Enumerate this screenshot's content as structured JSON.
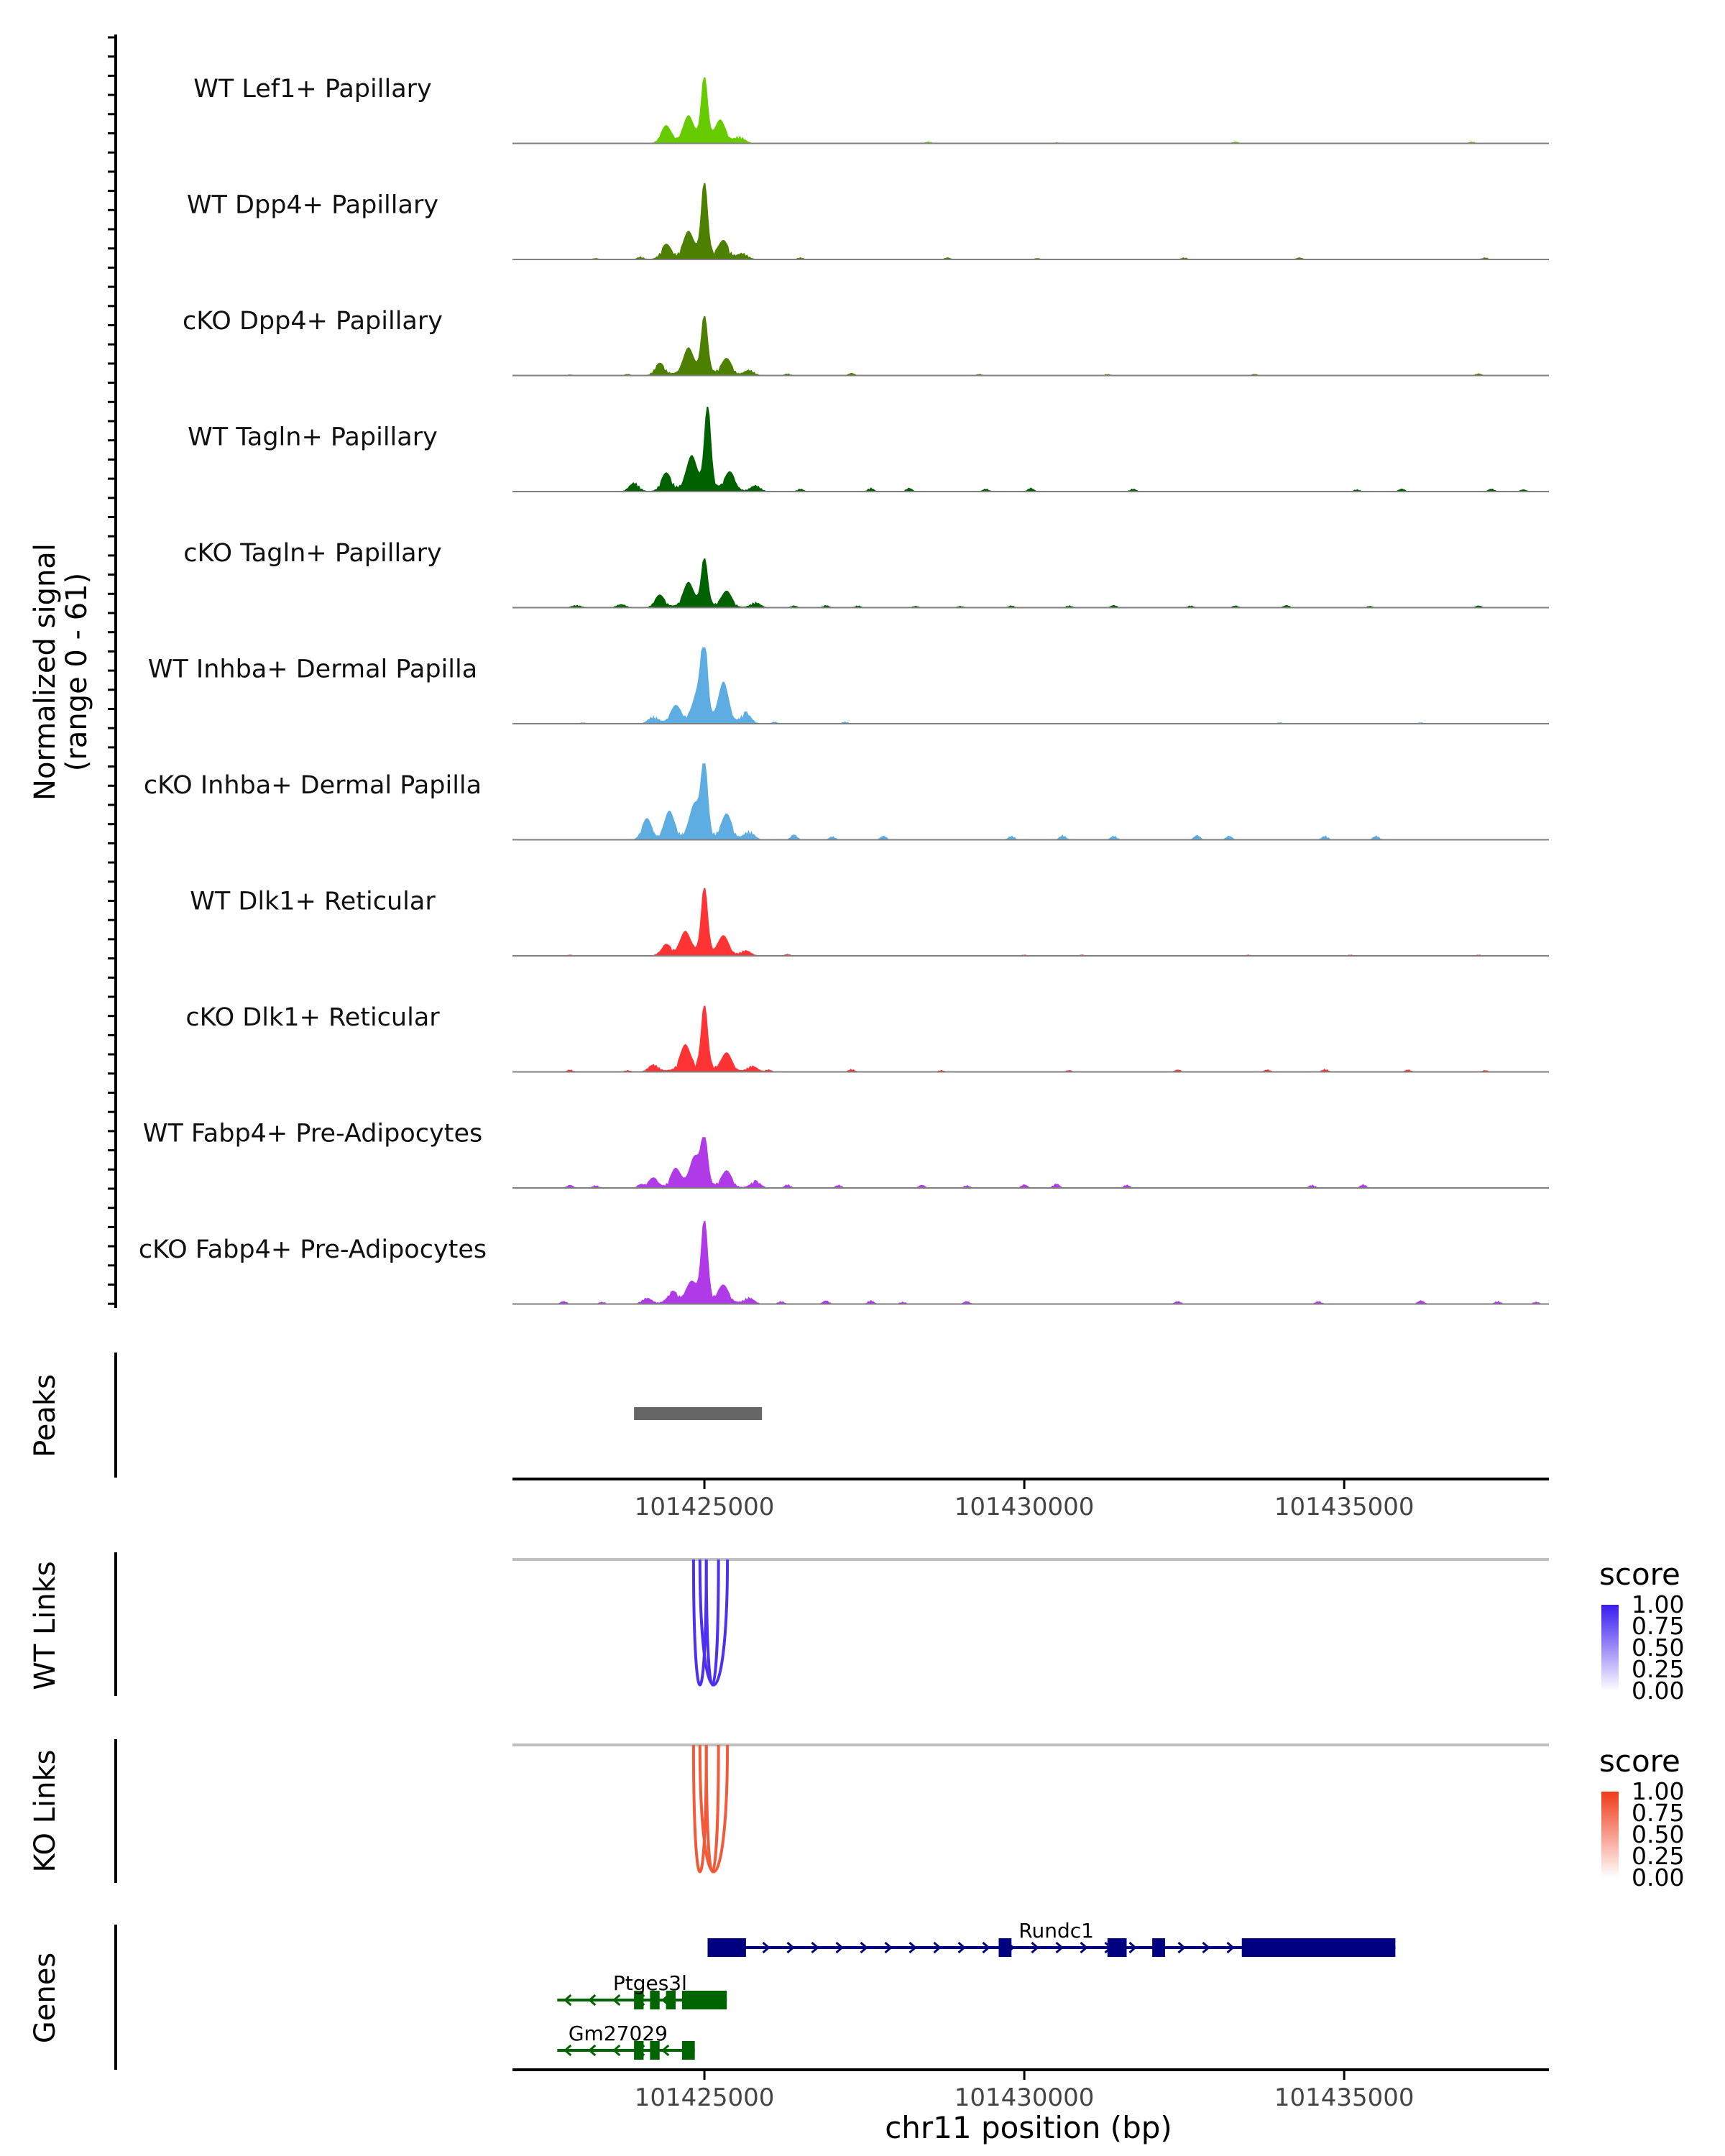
{
  "chart_data": {
    "type": "area",
    "chromosome": "chr11",
    "x_range": [
      101422000,
      101438200
    ],
    "y_axis": {
      "title_line1": "Normalized signal",
      "title_line2": "(range 0 - 61)",
      "range": [
        0,
        61
      ]
    },
    "x_axis": {
      "label": "chr11 position (bp)",
      "ticks": [
        101425000,
        101430000,
        101435000
      ],
      "tick_labels": [
        "101425000",
        "101430000",
        "101435000"
      ]
    },
    "coverage_tracks": [
      {
        "name": "WT Lef1+ Papillary",
        "color": "#66CC00",
        "scale": 0.78,
        "peaks": [
          [
            101424400,
            0.25
          ],
          [
            101424750,
            0.35
          ],
          [
            101425000,
            1.0
          ],
          [
            101425250,
            0.3
          ],
          [
            101425550,
            0.1
          ]
        ],
        "noise": [
          [
            101428500,
            0.03
          ],
          [
            101430500,
            0.02
          ],
          [
            101433300,
            0.03
          ],
          [
            101437000,
            0.03
          ]
        ]
      },
      {
        "name": "WT Dpp4+ Papillary",
        "color": "#4D8000",
        "scale": 0.9,
        "peaks": [
          [
            101424400,
            0.18
          ],
          [
            101424750,
            0.3
          ],
          [
            101425000,
            1.0
          ],
          [
            101425300,
            0.2
          ],
          [
            101425600,
            0.08
          ]
        ],
        "noise": [
          [
            101423300,
            0.02
          ],
          [
            101424000,
            0.04
          ],
          [
            101426500,
            0.03
          ],
          [
            101428800,
            0.03
          ],
          [
            101430200,
            0.02
          ],
          [
            101432500,
            0.03
          ],
          [
            101434300,
            0.03
          ],
          [
            101437200,
            0.03
          ]
        ]
      },
      {
        "name": "cKO Dpp4+ Papillary",
        "color": "#4D8000",
        "scale": 0.7,
        "peaks": [
          [
            101424300,
            0.2
          ],
          [
            101424750,
            0.4
          ],
          [
            101425000,
            1.0
          ],
          [
            101425350,
            0.25
          ],
          [
            101425700,
            0.1
          ]
        ],
        "noise": [
          [
            101422900,
            0.02
          ],
          [
            101423800,
            0.03
          ],
          [
            101426300,
            0.04
          ],
          [
            101427300,
            0.05
          ],
          [
            101429300,
            0.03
          ],
          [
            101431300,
            0.03
          ],
          [
            101433600,
            0.03
          ],
          [
            101437100,
            0.04
          ]
        ]
      },
      {
        "name": "WT Tagln+ Papillary",
        "color": "#006100",
        "scale": 1.0,
        "peaks": [
          [
            101423900,
            0.12
          ],
          [
            101424400,
            0.2
          ],
          [
            101424800,
            0.35
          ],
          [
            101425050,
            1.0
          ],
          [
            101425400,
            0.2
          ],
          [
            101425800,
            0.08
          ]
        ],
        "noise": [
          [
            101426500,
            0.04
          ],
          [
            101427600,
            0.05
          ],
          [
            101428200,
            0.05
          ],
          [
            101429400,
            0.04
          ],
          [
            101430100,
            0.05
          ],
          [
            101431700,
            0.04
          ],
          [
            101435200,
            0.03
          ],
          [
            101435900,
            0.04
          ],
          [
            101437300,
            0.04
          ],
          [
            101437800,
            0.03
          ]
        ]
      },
      {
        "name": "cKO Tagln+ Papillary",
        "color": "#006100",
        "scale": 0.58,
        "peaks": [
          [
            101423000,
            0.06
          ],
          [
            101423700,
            0.08
          ],
          [
            101424300,
            0.25
          ],
          [
            101424750,
            0.45
          ],
          [
            101425000,
            1.0
          ],
          [
            101425350,
            0.3
          ],
          [
            101425800,
            0.12
          ]
        ],
        "noise": [
          [
            101426400,
            0.05
          ],
          [
            101426900,
            0.06
          ],
          [
            101427400,
            0.05
          ],
          [
            101428300,
            0.04
          ],
          [
            101429000,
            0.04
          ],
          [
            101429800,
            0.05
          ],
          [
            101430700,
            0.05
          ],
          [
            101431400,
            0.06
          ],
          [
            101432600,
            0.05
          ],
          [
            101433300,
            0.05
          ],
          [
            101434100,
            0.06
          ],
          [
            101435400,
            0.04
          ],
          [
            101437100,
            0.05
          ]
        ]
      },
      {
        "name": "WT Inhba+ Dermal Papilla",
        "color": "#5DADE2",
        "scale": 0.9,
        "peaks": [
          [
            101424200,
            0.1
          ],
          [
            101424550,
            0.2
          ],
          [
            101424900,
            0.35
          ],
          [
            101425000,
            1.0
          ],
          [
            101425300,
            0.5
          ],
          [
            101425650,
            0.15
          ]
        ],
        "noise": [
          [
            101423100,
            0.02
          ],
          [
            101426100,
            0.03
          ],
          [
            101427200,
            0.03
          ],
          [
            101434000,
            0.02
          ],
          [
            101436200,
            0.02
          ]
        ]
      },
      {
        "name": "cKO Inhba+ Dermal Papilla",
        "color": "#5DADE2",
        "scale": 0.9,
        "peaks": [
          [
            101424100,
            0.28
          ],
          [
            101424450,
            0.35
          ],
          [
            101424850,
            0.4
          ],
          [
            101425000,
            1.0
          ],
          [
            101425350,
            0.3
          ],
          [
            101425700,
            0.12
          ]
        ],
        "noise": [
          [
            101426400,
            0.08
          ],
          [
            101427000,
            0.05
          ],
          [
            101427800,
            0.06
          ],
          [
            101429800,
            0.06
          ],
          [
            101430600,
            0.07
          ],
          [
            101431400,
            0.06
          ],
          [
            101432700,
            0.07
          ],
          [
            101433200,
            0.06
          ],
          [
            101434700,
            0.06
          ],
          [
            101435500,
            0.06
          ]
        ]
      },
      {
        "name": "WT Dlk1+ Reticular",
        "color": "#FF3333",
        "scale": 0.8,
        "peaks": [
          [
            101424400,
            0.15
          ],
          [
            101424700,
            0.3
          ],
          [
            101425000,
            1.0
          ],
          [
            101425300,
            0.25
          ],
          [
            101425650,
            0.08
          ]
        ],
        "noise": [
          [
            101422900,
            0.02
          ],
          [
            101426300,
            0.03
          ],
          [
            101430000,
            0.02
          ],
          [
            101430900,
            0.02
          ],
          [
            101433500,
            0.02
          ],
          [
            101435100,
            0.02
          ],
          [
            101437100,
            0.02
          ]
        ]
      },
      {
        "name": "cKO Dlk1+ Reticular",
        "color": "#FF3333",
        "scale": 0.78,
        "peaks": [
          [
            101424200,
            0.12
          ],
          [
            101424700,
            0.35
          ],
          [
            101425000,
            1.0
          ],
          [
            101425350,
            0.25
          ],
          [
            101425750,
            0.1
          ]
        ],
        "noise": [
          [
            101422900,
            0.04
          ],
          [
            101423800,
            0.03
          ],
          [
            101426000,
            0.04
          ],
          [
            101427300,
            0.05
          ],
          [
            101428700,
            0.03
          ],
          [
            101430700,
            0.03
          ],
          [
            101432400,
            0.04
          ],
          [
            101433800,
            0.04
          ],
          [
            101434700,
            0.05
          ],
          [
            101436000,
            0.04
          ],
          [
            101437200,
            0.03
          ]
        ]
      },
      {
        "name": "WT Fabp4+ Pre-Adipocytes",
        "color": "#B03AE8",
        "scale": 0.6,
        "peaks": [
          [
            101424200,
            0.2
          ],
          [
            101424550,
            0.35
          ],
          [
            101424850,
            0.55
          ],
          [
            101425000,
            1.0
          ],
          [
            101425350,
            0.3
          ],
          [
            101425800,
            0.15
          ]
        ],
        "noise": [
          [
            101422900,
            0.07
          ],
          [
            101423300,
            0.06
          ],
          [
            101424000,
            0.08
          ],
          [
            101426300,
            0.08
          ],
          [
            101427100,
            0.07
          ],
          [
            101428400,
            0.07
          ],
          [
            101429100,
            0.06
          ],
          [
            101430000,
            0.08
          ],
          [
            101430500,
            0.1
          ],
          [
            101431600,
            0.07
          ],
          [
            101434500,
            0.07
          ],
          [
            101435300,
            0.08
          ]
        ]
      },
      {
        "name": "cKO Fabp4+ Pre-Adipocytes",
        "color": "#B03AE8",
        "scale": 0.98,
        "peaks": [
          [
            101424100,
            0.08
          ],
          [
            101424500,
            0.12
          ],
          [
            101424800,
            0.2
          ],
          [
            101425000,
            1.0
          ],
          [
            101425300,
            0.18
          ],
          [
            101425700,
            0.08
          ]
        ],
        "noise": [
          [
            101422800,
            0.04
          ],
          [
            101423400,
            0.03
          ],
          [
            101426200,
            0.04
          ],
          [
            101426900,
            0.05
          ],
          [
            101427600,
            0.05
          ],
          [
            101428100,
            0.03
          ],
          [
            101429100,
            0.04
          ],
          [
            101432400,
            0.04
          ],
          [
            101434600,
            0.04
          ],
          [
            101436200,
            0.05
          ],
          [
            101437400,
            0.04
          ],
          [
            101438000,
            0.03
          ]
        ]
      }
    ],
    "peaks_track": {
      "label": "Peaks",
      "regions": [
        [
          101423900,
          101425900
        ]
      ],
      "color": "#666666"
    },
    "link_tracks": [
      {
        "label": "WT Links",
        "color": "#5030F0",
        "gradient_top": "#3A1AF0",
        "legend_title": "score",
        "legend_ticks": [
          "1.00",
          "0.75",
          "0.50",
          "0.25",
          "0.00"
        ],
        "arcs": [
          [
            101424830,
            101425030
          ],
          [
            101425030,
            101425220
          ],
          [
            101424930,
            101425360
          ]
        ]
      },
      {
        "label": "KO Links",
        "color": "#F25A3A",
        "gradient_top": "#F03A1A",
        "legend_title": "score",
        "legend_ticks": [
          "1.00",
          "0.75",
          "0.50",
          "0.25",
          "0.00"
        ],
        "arcs": [
          [
            101424830,
            101425030
          ],
          [
            101425030,
            101425220
          ],
          [
            101424930,
            101425360
          ]
        ]
      }
    ],
    "genes_track": {
      "label": "Genes",
      "genes": [
        {
          "name": "Rundc1",
          "strand": "+",
          "color": "#000080",
          "start": 101425050,
          "end": 101435800,
          "exons": [
            [
              101425050,
              101425650
            ],
            [
              101429600,
              101429800
            ],
            [
              101431300,
              101431600
            ],
            [
              101432000,
              101432200
            ],
            [
              101433400,
              101435800
            ]
          ],
          "label_pos": 101430500,
          "row": 0
        },
        {
          "name": "Ptges3l",
          "strand": "-",
          "color": "#006400",
          "start": 101422700,
          "end": 101425350,
          "exons": [
            [
              101423900,
              101424050
            ],
            [
              101424150,
              101424300
            ],
            [
              101424400,
              101424550
            ],
            [
              101424650,
              101425350
            ]
          ],
          "label_pos": 101424150,
          "row": 1
        },
        {
          "name": "Gm27029",
          "strand": "-",
          "color": "#006400",
          "start": 101422700,
          "end": 101424850,
          "exons": [
            [
              101423900,
              101424050
            ],
            [
              101424150,
              101424300
            ],
            [
              101424650,
              101424850
            ]
          ],
          "label_pos": 101423650,
          "row": 2
        }
      ]
    }
  }
}
